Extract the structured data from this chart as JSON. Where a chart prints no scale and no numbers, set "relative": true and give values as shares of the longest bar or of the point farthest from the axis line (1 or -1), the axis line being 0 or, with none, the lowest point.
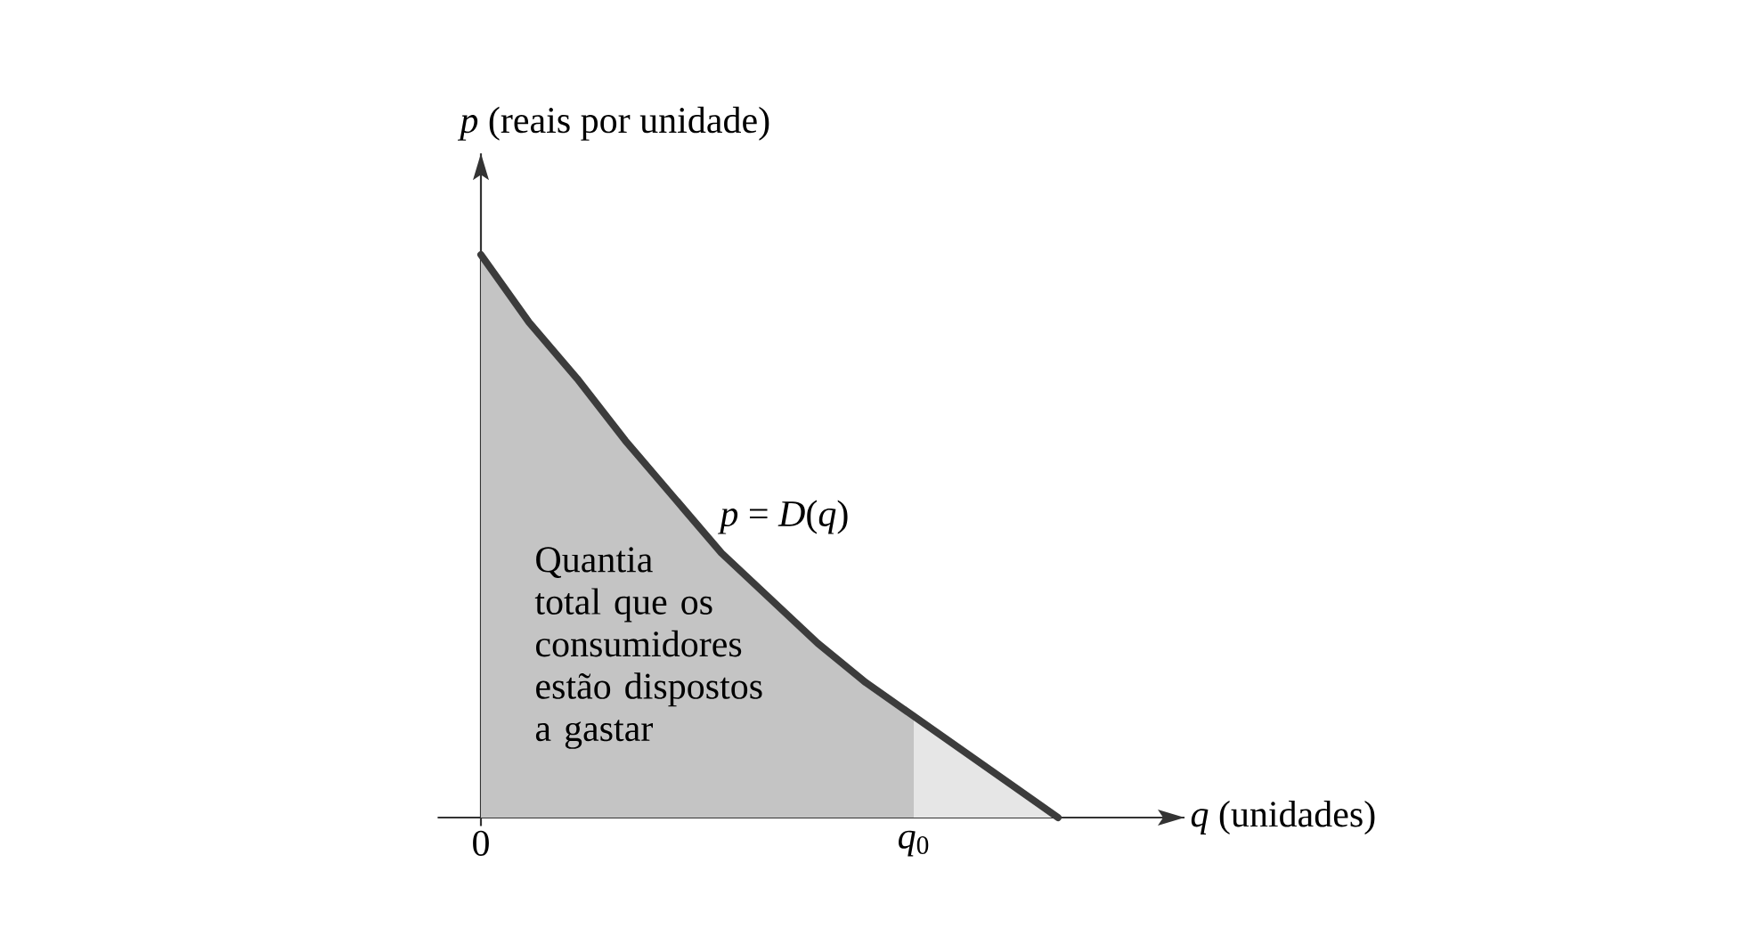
{
  "chart_data": {
    "type": "area",
    "relative": true,
    "xlabel": "*q* (unidades)",
    "ylabel": "*p* (reais por unidade)",
    "categories": [
      "0",
      null,
      null,
      null,
      null,
      null,
      null,
      null,
      null,
      "*q*$_{0}$",
      null,
      null,
      null
    ],
    "series": [
      {
        "color": "#3c3c3c",
        "values": [
          1.0,
          0.88,
          0.78,
          0.67,
          0.57,
          0.47,
          0.39,
          0.31,
          0.24,
          0.18,
          0.12,
          0.06,
          0
        ]
      },
      {
        "type": "area",
        "color": "#c4c4c4",
        "values": [
          1.0,
          0.88,
          0.78,
          0.67,
          0.57,
          0.47,
          0.39,
          0.31,
          0.24,
          0.18,
          null,
          null,
          null
        ]
      }
    ],
    "annotations": [
      "*p* = *D*(*q*)",
      "Quantia total que os consumidores estão dispostos a gastar"
    ]
  }
}
